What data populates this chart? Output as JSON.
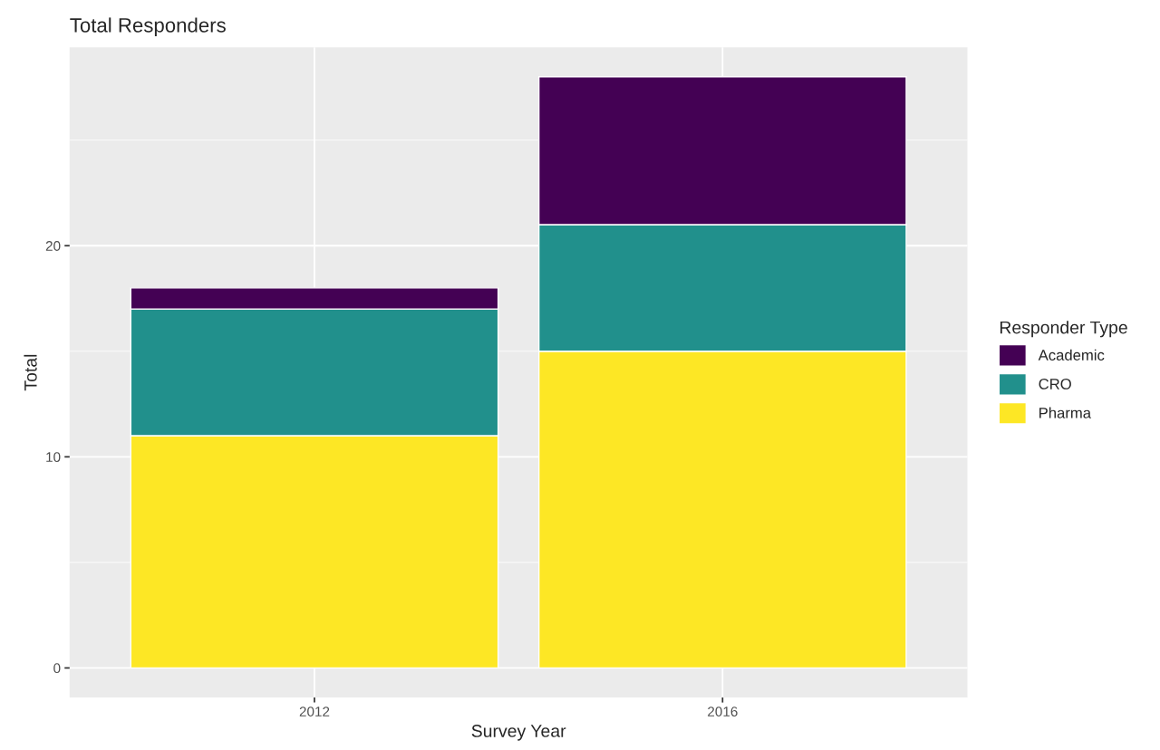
{
  "chart_data": {
    "type": "bar",
    "title": "Total Responders",
    "xlabel": "Survey Year",
    "ylabel": "Total",
    "legend_title": "Responder Type",
    "categories": [
      "2012",
      "2016"
    ],
    "series": [
      {
        "name": "Pharma",
        "color": "#fde725",
        "values": [
          11,
          15
        ]
      },
      {
        "name": "CRO",
        "color": "#21908c",
        "values": [
          6,
          6
        ]
      },
      {
        "name": "Academic",
        "color": "#440154",
        "values": [
          1,
          7
        ]
      }
    ],
    "stacked": true,
    "ylim": [
      -1.4,
      29.4
    ],
    "yticks": [
      0,
      10,
      20
    ],
    "grid": true,
    "legend": "right"
  }
}
